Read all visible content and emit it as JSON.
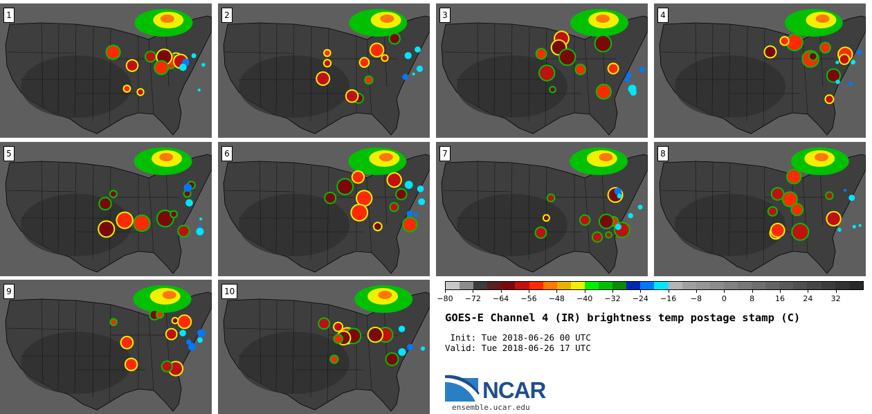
{
  "panels": [
    {
      "label": "1"
    },
    {
      "label": "2"
    },
    {
      "label": "3"
    },
    {
      "label": "4"
    },
    {
      "label": "5"
    },
    {
      "label": "6"
    },
    {
      "label": "7"
    },
    {
      "label": "8"
    },
    {
      "label": "9"
    },
    {
      "label": "10"
    }
  ],
  "colorbar": {
    "colors": [
      "#c8c8c8",
      "#8c8c8c",
      "#3c3c3c",
      "#5a1e1e",
      "#7a0a0a",
      "#c01010",
      "#ff2a00",
      "#ff7800",
      "#e6b400",
      "#f0f000",
      "#00f000",
      "#00c000",
      "#0a8c0a",
      "#0028b4",
      "#0078ff",
      "#00e6ff",
      "#b4b4b4",
      "#a0a0a0",
      "#969696",
      "#8c8c8c",
      "#828282",
      "#787878",
      "#6e6e6e",
      "#646464",
      "#5a5a5a",
      "#505050",
      "#464646",
      "#3c3c3c",
      "#323232",
      "#282828"
    ],
    "ticks": [
      "−80",
      "−72",
      "−64",
      "−56",
      "−48",
      "−40",
      "−32",
      "−24",
      "−16",
      "−8",
      "0",
      "8",
      "16",
      "24",
      "32"
    ]
  },
  "title": "GOES-E Channel 4 (IR) brightness temp postage stamp (C)",
  "init": " Init: Tue 2018-06-26 00 UTC",
  "valid": "Valid: Tue 2018-06-26 17 UTC",
  "logo_text": "NCAR",
  "site": "ensemble.ucar.edu"
}
